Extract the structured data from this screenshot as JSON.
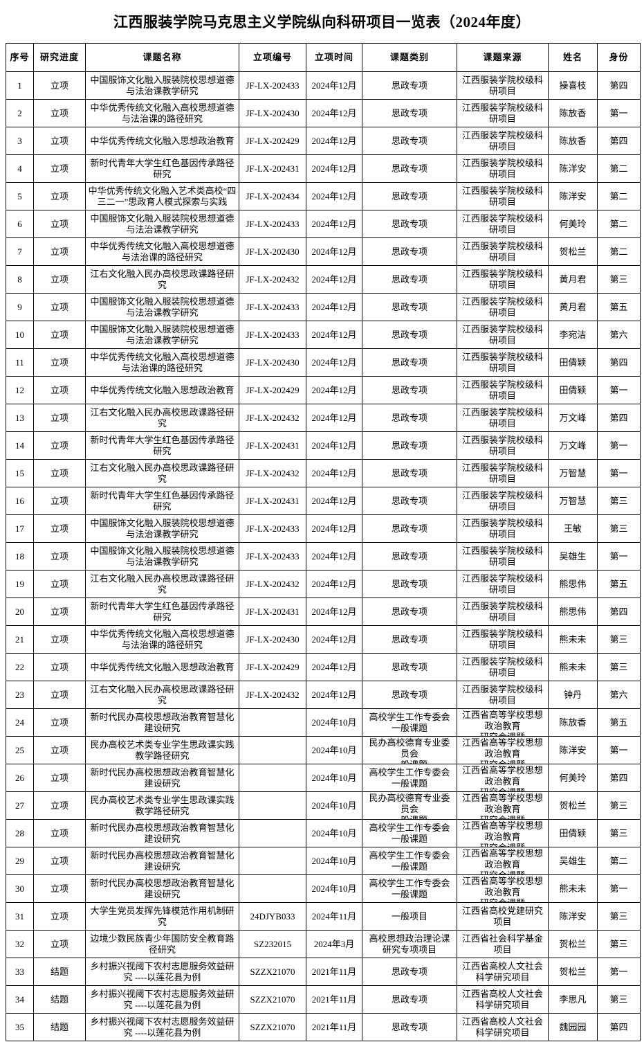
{
  "page": {
    "title": "江西服装学院马克思主义学院纵向科研项目一览表（2024年度）"
  },
  "colors": {
    "text": "#000000",
    "background": "#ffffff",
    "border": "#000000"
  },
  "table": {
    "headers": [
      "序号",
      "研究进度",
      "课题名称",
      "立项编号",
      "立项时间",
      "课题类别",
      "课题来源",
      "姓名",
      "身份"
    ],
    "column_keys": [
      "no",
      "progress",
      "title",
      "code",
      "date",
      "category",
      "source",
      "name",
      "identity"
    ],
    "rows": [
      [
        "1",
        "立项",
        "中国服饰文化融入服装院校思想道德与法治课教学研究",
        "JF-LX-202433",
        "2024年12月",
        "思政专项",
        "江西服装学院校级科研项目",
        "操喜枝",
        "第四"
      ],
      [
        "2",
        "立项",
        "中华优秀传统文化融入高校思想道德与法治课的路径研究",
        "JF-LX-202430",
        "2024年12月",
        "思政专项",
        "江西服装学院校级科研项目",
        "陈放香",
        "第一"
      ],
      [
        "3",
        "立项",
        "中华优秀传统文化融入思想政治教育",
        "JF-LX-202429",
        "2024年12月",
        "思政专项",
        "江西服装学院校级科研项目",
        "陈放香",
        "第四"
      ],
      [
        "4",
        "立项",
        "新时代青年大学生红色基因传承路径研究",
        "JF-LX-202431",
        "2024年12月",
        "思政专项",
        "江西服装学院校级科研项目",
        "陈洋安",
        "第二"
      ],
      [
        "5",
        "立项",
        "中华优秀传统文化融入艺术类高校“四三二一”思政育人模式探索与实践",
        "JF-LX-202434",
        "2024年12月",
        "思政专项",
        "江西服装学院校级科研项目",
        "陈洋安",
        "第二"
      ],
      [
        "6",
        "立项",
        "中国服饰文化融入服装院校思想道德与法治课教学研究",
        "JF-LX-202433",
        "2024年12月",
        "思政专项",
        "江西服装学院校级科研项目",
        "何美玲",
        "第二"
      ],
      [
        "7",
        "立项",
        "中华优秀传统文化融入高校思想道德与法治课的路径研究",
        "JF-LX-202430",
        "2024年12月",
        "思政专项",
        "江西服装学院校级科研项目",
        "贺松兰",
        "第二"
      ],
      [
        "8",
        "立项",
        "江右文化融入民办高校思政课路径研究",
        "JF-LX-202432",
        "2024年12月",
        "思政专项",
        "江西服装学院校级科研项目",
        "黄月君",
        "第三"
      ],
      [
        "9",
        "立项",
        "中国服饰文化融入服装院校思想道德与法治课教学研究",
        "JF-LX-202433",
        "2024年12月",
        "思政专项",
        "江西服装学院校级科研项目",
        "黄月君",
        "第五"
      ],
      [
        "10",
        "立项",
        "中国服饰文化融入服装院校思想道德与法治课教学研究",
        "JF-LX-202433",
        "2024年12月",
        "思政专项",
        "江西服装学院校级科研项目",
        "李宛洁",
        "第六"
      ],
      [
        "11",
        "立项",
        "中华优秀传统文化融入高校思想道德与法治课的路径研究",
        "JF-LX-202430",
        "2024年12月",
        "思政专项",
        "江西服装学院校级科研项目",
        "田倩颖",
        "第四"
      ],
      [
        "12",
        "立项",
        "中华优秀传统文化融入思想政治教育",
        "JF-LX-202429",
        "2024年12月",
        "思政专项",
        "江西服装学院校级科研项目",
        "田倩颖",
        "第一"
      ],
      [
        "13",
        "立项",
        "江右文化融入民办高校思政课路径研究",
        "JF-LX-202432",
        "2024年12月",
        "思政专项",
        "江西服装学院校级科研项目",
        "万文峰",
        "第四"
      ],
      [
        "14",
        "立项",
        "新时代青年大学生红色基因传承路径研究",
        "JF-LX-202431",
        "2024年12月",
        "思政专项",
        "江西服装学院校级科研项目",
        "万文峰",
        "第一"
      ],
      [
        "15",
        "立项",
        "江右文化融入民办高校思政课路径研究",
        "JF-LX-202432",
        "2024年12月",
        "思政专项",
        "江西服装学院校级科研项目",
        "万智慧",
        "第一"
      ],
      [
        "16",
        "立项",
        "新时代青年大学生红色基因传承路径研究",
        "JF-LX-202431",
        "2024年12月",
        "思政专项",
        "江西服装学院校级科研项目",
        "万智慧",
        "第三"
      ],
      [
        "17",
        "立项",
        "中国服饰文化融入服装院校思想道德与法治课教学研究",
        "JF-LX-202433",
        "2024年12月",
        "思政专项",
        "江西服装学院校级科研项目",
        "王敏",
        "第三"
      ],
      [
        "18",
        "立项",
        "中国服饰文化融入服装院校思想道德与法治课教学研究",
        "JF-LX-202433",
        "2024年12月",
        "思政专项",
        "江西服装学院校级科研项目",
        "吴雄生",
        "第一"
      ],
      [
        "19",
        "立项",
        "江右文化融入民办高校思政课路径研究",
        "JF-LX-202432",
        "2024年12月",
        "思政专项",
        "江西服装学院校级科研项目",
        "熊思伟",
        "第五"
      ],
      [
        "20",
        "立项",
        "新时代青年大学生红色基因传承路径研究",
        "JF-LX-202431",
        "2024年12月",
        "思政专项",
        "江西服装学院校级科研项目",
        "熊思伟",
        "第四"
      ],
      [
        "21",
        "立项",
        "中华优秀传统文化融入高校思想道德与法治课的路径研究",
        "JF-LX-202430",
        "2024年12月",
        "思政专项",
        "江西服装学院校级科研项目",
        "熊未未",
        "第三"
      ],
      [
        "22",
        "立项",
        "中华优秀传统文化融入思想政治教育",
        "JF-LX-202429",
        "2024年12月",
        "思政专项",
        "江西服装学院校级科研项目",
        "熊未未",
        "第三"
      ],
      [
        "23",
        "立项",
        "江右文化融入民办高校思政课路径研究",
        "JF-LX-202432",
        "2024年12月",
        "思政专项",
        "江西服装学院校级科研项目",
        "钟丹",
        "第六"
      ],
      [
        "24",
        "立项",
        "新时代民办高校思想政治教育智慧化建设研究",
        "",
        "2024年10月",
        "高校学生工作专委会一般课题",
        "江西省高等学校思想政治教育\n研究会课题",
        "陈放香",
        "第五"
      ],
      [
        "25",
        "立项",
        "民办高校艺术类专业学生思政课实践教学路径研究",
        "",
        "2024年10月",
        "民办高校德育专业委员会\n一般课题",
        "江西省高等学校思想政治教育\n研究会课题",
        "陈洋安",
        "第一"
      ],
      [
        "26",
        "立项",
        "新时代民办高校思想政治教育智慧化建设研究",
        "",
        "2024年10月",
        "高校学生工作专委会一般课题",
        "江西省高等学校思想政治教育\n研究会课题",
        "何美玲",
        "第四"
      ],
      [
        "27",
        "立项",
        "民办高校艺术类专业学生思政课实践教学路径研究",
        "",
        "2024年10月",
        "民办高校德育专业委员会\n一般课题",
        "江西省高等学校思想政治教育\n研究会课题",
        "贺松兰",
        "第三"
      ],
      [
        "28",
        "立项",
        "新时代民办高校思想政治教育智慧化建设研究",
        "",
        "2024年10月",
        "高校学生工作专委会一般课题",
        "江西省高等学校思想政治教育\n研究会课题",
        "田倩颖",
        "第三"
      ],
      [
        "29",
        "立项",
        "新时代民办高校思想政治教育智慧化建设研究",
        "",
        "2024年10月",
        "高校学生工作专委会一般课题",
        "江西省高等学校思想政治教育\n研究会课题",
        "吴雄生",
        "第二"
      ],
      [
        "30",
        "立项",
        "新时代民办高校思想政治教育智慧化建设研究",
        "",
        "2024年10月",
        "高校学生工作专委会一般课题",
        "江西省高等学校思想政治教育\n研究会课题",
        "熊未未",
        "第一"
      ],
      [
        "31",
        "立项",
        "大学生党员发挥先锋模范作用机制研究",
        "24DJYB033",
        "2024年11月",
        "一般项目",
        "江西省高校党建研究项目",
        "陈洋安",
        "第三"
      ],
      [
        "32",
        "立项",
        "边境少数民族青少年国防安全教育路径研究",
        "SZ232015",
        "2024年3月",
        "高校思想政治理论课研究专项项目",
        "江西省社会科学基金项目",
        "贺松兰",
        "第三"
      ],
      [
        "33",
        "结题",
        "乡村振兴视阈下农村志愿服务效益研究 ----以莲花县为例",
        "SZZX21070",
        "2021年11月",
        "思政专项",
        "江西省高校人文社会科学研究项目",
        "贺松兰",
        "第一"
      ],
      [
        "34",
        "结题",
        "乡村振兴视阈下农村志愿服务效益研究 ----以莲花县为例",
        "SZZX21070",
        "2021年11月",
        "思政专项",
        "江西省高校人文社会科学研究项目",
        "李思凡",
        "第三"
      ],
      [
        "35",
        "结题",
        "乡村振兴视阈下农村志愿服务效益研究 ----以莲花县为例",
        "SZZX21070",
        "2021年11月",
        "思政专项",
        "江西省高校人文社会科学研究项目",
        "魏园园",
        "第四"
      ]
    ]
  }
}
